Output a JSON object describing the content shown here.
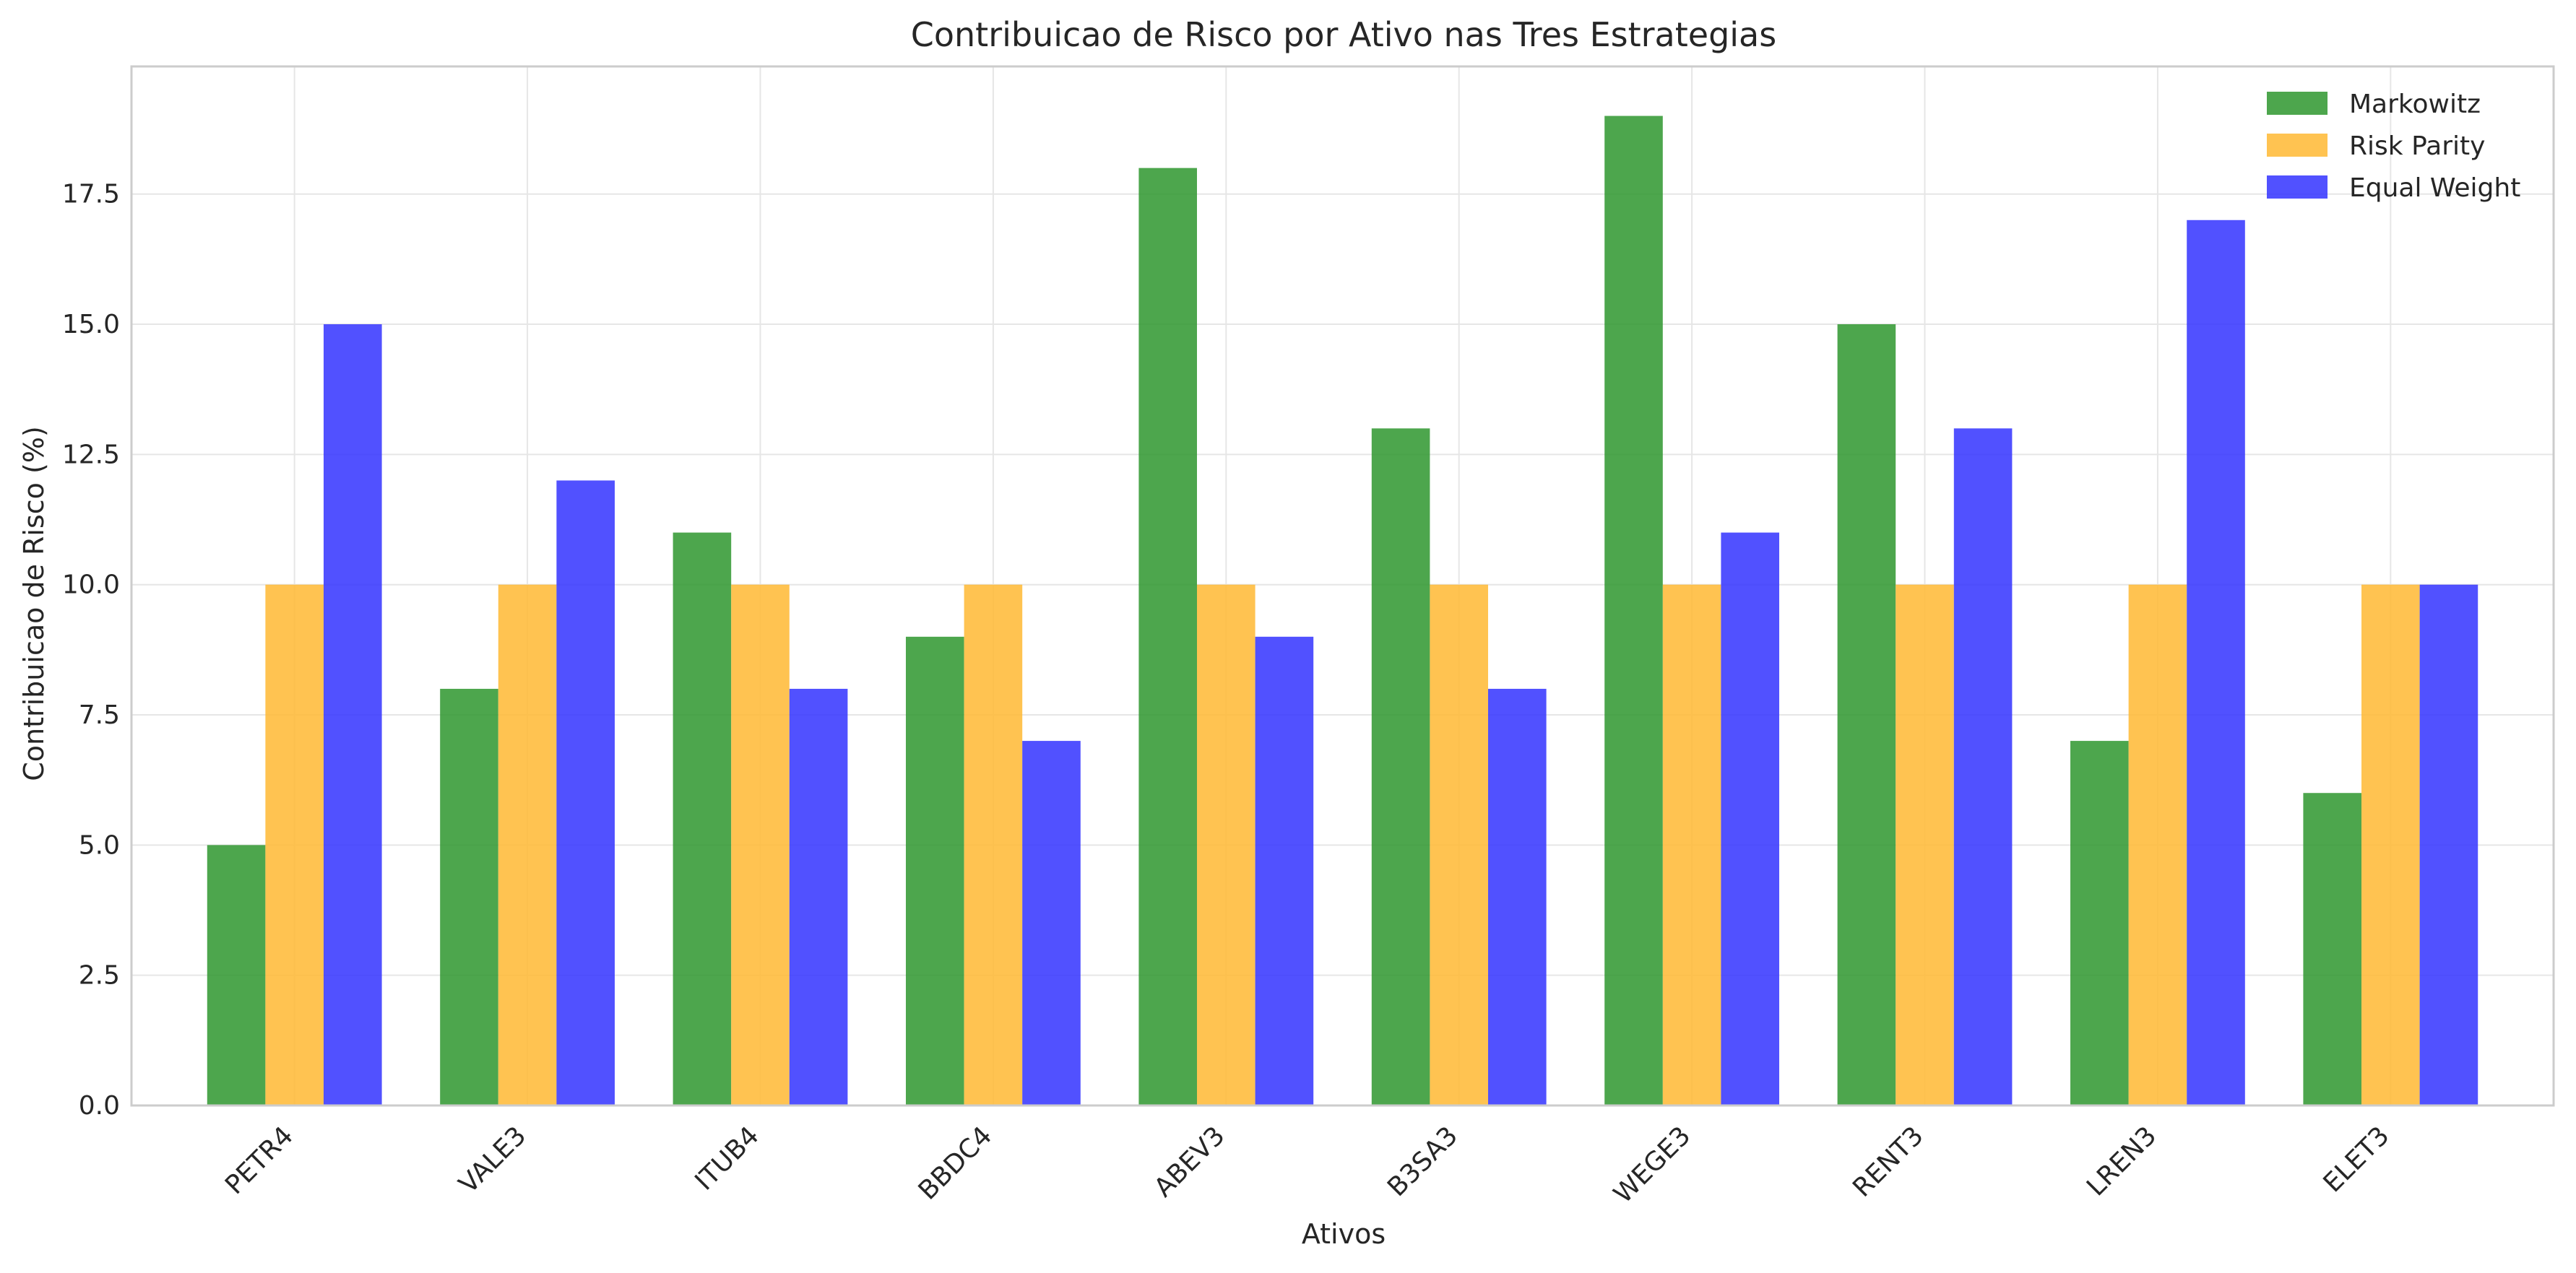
{
  "chart_data": {
    "type": "bar",
    "title": "Contribuicao de Risco por Ativo nas Tres Estrategias",
    "xlabel": "Ativos",
    "ylabel": "Contribuicao de Risco (%)",
    "categories": [
      "PETR4",
      "VALE3",
      "ITUB4",
      "BBDC4",
      "ABEV3",
      "B3SA3",
      "WEGE3",
      "RENT3",
      "LREN3",
      "ELET3"
    ],
    "series": [
      {
        "name": "Markowitz",
        "color": "#2e962e",
        "values": [
          5,
          8,
          11,
          9,
          18,
          13,
          19,
          15,
          7,
          6
        ]
      },
      {
        "name": "Risk Parity",
        "color": "#ffb833",
        "values": [
          10,
          10,
          10,
          10,
          10,
          10,
          10,
          10,
          10,
          10
        ]
      },
      {
        "name": "Equal Weight",
        "color": "#3333ff",
        "values": [
          15,
          12,
          8,
          7,
          9,
          8,
          11,
          13,
          17,
          10
        ]
      }
    ],
    "ylim": [
      0,
      19.95
    ],
    "yticks": [
      "0.0",
      "2.5",
      "5.0",
      "7.5",
      "10.0",
      "12.5",
      "15.0",
      "17.5"
    ],
    "grid": true,
    "legend_position": "top-right"
  }
}
